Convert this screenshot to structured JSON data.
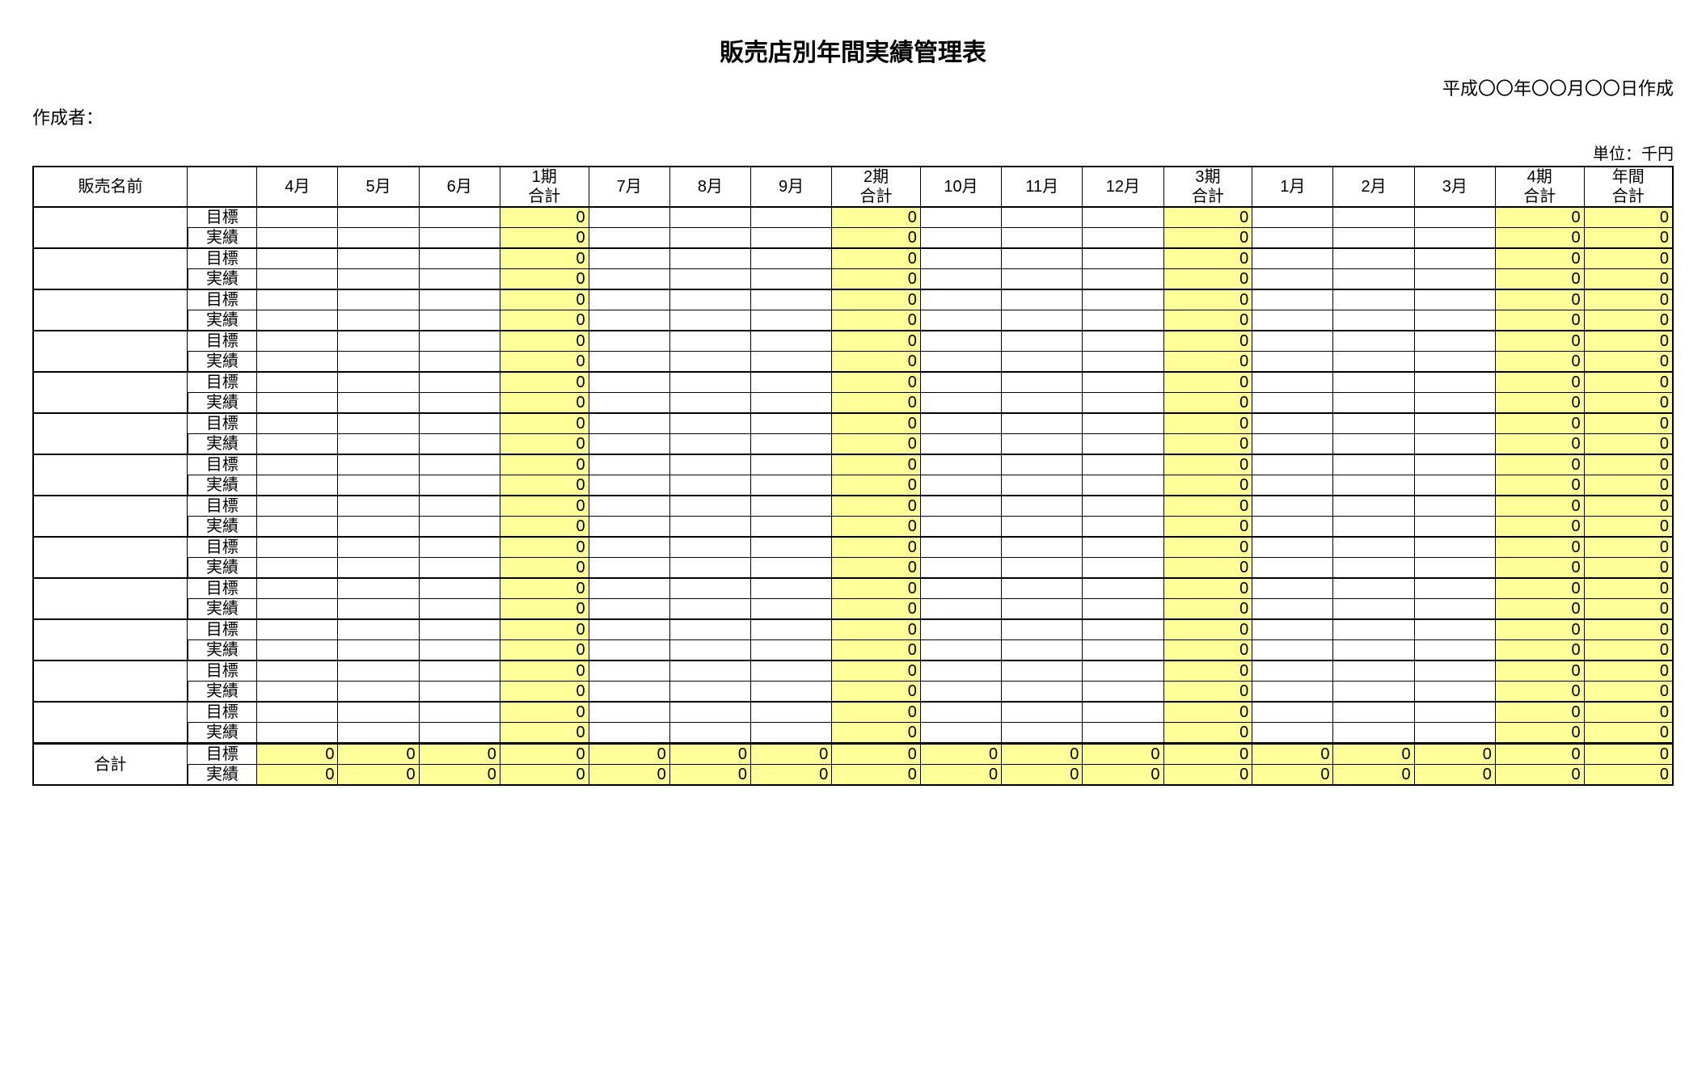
{
  "title": "販売店別年間実績管理表",
  "date_created": "平成〇〇年〇〇月〇〇日作成",
  "creator_label": "作成者：",
  "unit_label": "単位：千円",
  "colors": {
    "highlight_bg": "#ffff99",
    "border": "#000000",
    "background": "#ffffff",
    "text": "#000000"
  },
  "headers": {
    "name": "販売名前",
    "type_blank": "",
    "months_q1": [
      "4月",
      "5月",
      "6月"
    ],
    "q1_sum_line1": "1期",
    "q1_sum_line2": "合計",
    "months_q2": [
      "7月",
      "8月",
      "9月"
    ],
    "q2_sum_line1": "2期",
    "q2_sum_line2": "合計",
    "months_q3": [
      "10月",
      "11月",
      "12月"
    ],
    "q3_sum_line1": "3期",
    "q3_sum_line2": "合計",
    "months_q4": [
      "1月",
      "2月",
      "3月"
    ],
    "q4_sum_line1": "4期",
    "q4_sum_line2": "合計",
    "year_sum_line1": "年間",
    "year_sum_line2": "合計"
  },
  "row_type_labels": {
    "target": "目標",
    "actual": "実績"
  },
  "store_rows": [
    {
      "name": "",
      "target": {
        "m": [
          "",
          "",
          "",
          "",
          "",
          "",
          "",
          "",
          "",
          "",
          "",
          ""
        ],
        "q": [
          "0",
          "0",
          "0",
          "0"
        ],
        "y": "0"
      },
      "actual": {
        "m": [
          "",
          "",
          "",
          "",
          "",
          "",
          "",
          "",
          "",
          "",
          "",
          ""
        ],
        "q": [
          "0",
          "0",
          "0",
          "0"
        ],
        "y": "0"
      }
    },
    {
      "name": "",
      "target": {
        "m": [
          "",
          "",
          "",
          "",
          "",
          "",
          "",
          "",
          "",
          "",
          "",
          ""
        ],
        "q": [
          "0",
          "0",
          "0",
          "0"
        ],
        "y": "0"
      },
      "actual": {
        "m": [
          "",
          "",
          "",
          "",
          "",
          "",
          "",
          "",
          "",
          "",
          "",
          ""
        ],
        "q": [
          "0",
          "0",
          "0",
          "0"
        ],
        "y": "0"
      }
    },
    {
      "name": "",
      "target": {
        "m": [
          "",
          "",
          "",
          "",
          "",
          "",
          "",
          "",
          "",
          "",
          "",
          ""
        ],
        "q": [
          "0",
          "0",
          "0",
          "0"
        ],
        "y": "0"
      },
      "actual": {
        "m": [
          "",
          "",
          "",
          "",
          "",
          "",
          "",
          "",
          "",
          "",
          "",
          ""
        ],
        "q": [
          "0",
          "0",
          "0",
          "0"
        ],
        "y": "0"
      }
    },
    {
      "name": "",
      "target": {
        "m": [
          "",
          "",
          "",
          "",
          "",
          "",
          "",
          "",
          "",
          "",
          "",
          ""
        ],
        "q": [
          "0",
          "0",
          "0",
          "0"
        ],
        "y": "0"
      },
      "actual": {
        "m": [
          "",
          "",
          "",
          "",
          "",
          "",
          "",
          "",
          "",
          "",
          "",
          ""
        ],
        "q": [
          "0",
          "0",
          "0",
          "0"
        ],
        "y": "0"
      }
    },
    {
      "name": "",
      "target": {
        "m": [
          "",
          "",
          "",
          "",
          "",
          "",
          "",
          "",
          "",
          "",
          "",
          ""
        ],
        "q": [
          "0",
          "0",
          "0",
          "0"
        ],
        "y": "0"
      },
      "actual": {
        "m": [
          "",
          "",
          "",
          "",
          "",
          "",
          "",
          "",
          "",
          "",
          "",
          ""
        ],
        "q": [
          "0",
          "0",
          "0",
          "0"
        ],
        "y": "0"
      }
    },
    {
      "name": "",
      "target": {
        "m": [
          "",
          "",
          "",
          "",
          "",
          "",
          "",
          "",
          "",
          "",
          "",
          ""
        ],
        "q": [
          "0",
          "0",
          "0",
          "0"
        ],
        "y": "0"
      },
      "actual": {
        "m": [
          "",
          "",
          "",
          "",
          "",
          "",
          "",
          "",
          "",
          "",
          "",
          ""
        ],
        "q": [
          "0",
          "0",
          "0",
          "0"
        ],
        "y": "0"
      }
    },
    {
      "name": "",
      "target": {
        "m": [
          "",
          "",
          "",
          "",
          "",
          "",
          "",
          "",
          "",
          "",
          "",
          ""
        ],
        "q": [
          "0",
          "0",
          "0",
          "0"
        ],
        "y": "0"
      },
      "actual": {
        "m": [
          "",
          "",
          "",
          "",
          "",
          "",
          "",
          "",
          "",
          "",
          "",
          ""
        ],
        "q": [
          "0",
          "0",
          "0",
          "0"
        ],
        "y": "0"
      }
    },
    {
      "name": "",
      "target": {
        "m": [
          "",
          "",
          "",
          "",
          "",
          "",
          "",
          "",
          "",
          "",
          "",
          ""
        ],
        "q": [
          "0",
          "0",
          "0",
          "0"
        ],
        "y": "0"
      },
      "actual": {
        "m": [
          "",
          "",
          "",
          "",
          "",
          "",
          "",
          "",
          "",
          "",
          "",
          ""
        ],
        "q": [
          "0",
          "0",
          "0",
          "0"
        ],
        "y": "0"
      }
    },
    {
      "name": "",
      "target": {
        "m": [
          "",
          "",
          "",
          "",
          "",
          "",
          "",
          "",
          "",
          "",
          "",
          ""
        ],
        "q": [
          "0",
          "0",
          "0",
          "0"
        ],
        "y": "0"
      },
      "actual": {
        "m": [
          "",
          "",
          "",
          "",
          "",
          "",
          "",
          "",
          "",
          "",
          "",
          ""
        ],
        "q": [
          "0",
          "0",
          "0",
          "0"
        ],
        "y": "0"
      }
    },
    {
      "name": "",
      "target": {
        "m": [
          "",
          "",
          "",
          "",
          "",
          "",
          "",
          "",
          "",
          "",
          "",
          ""
        ],
        "q": [
          "0",
          "0",
          "0",
          "0"
        ],
        "y": "0"
      },
      "actual": {
        "m": [
          "",
          "",
          "",
          "",
          "",
          "",
          "",
          "",
          "",
          "",
          "",
          ""
        ],
        "q": [
          "0",
          "0",
          "0",
          "0"
        ],
        "y": "0"
      }
    },
    {
      "name": "",
      "target": {
        "m": [
          "",
          "",
          "",
          "",
          "",
          "",
          "",
          "",
          "",
          "",
          "",
          ""
        ],
        "q": [
          "0",
          "0",
          "0",
          "0"
        ],
        "y": "0"
      },
      "actual": {
        "m": [
          "",
          "",
          "",
          "",
          "",
          "",
          "",
          "",
          "",
          "",
          "",
          ""
        ],
        "q": [
          "0",
          "0",
          "0",
          "0"
        ],
        "y": "0"
      }
    },
    {
      "name": "",
      "target": {
        "m": [
          "",
          "",
          "",
          "",
          "",
          "",
          "",
          "",
          "",
          "",
          "",
          ""
        ],
        "q": [
          "0",
          "0",
          "0",
          "0"
        ],
        "y": "0"
      },
      "actual": {
        "m": [
          "",
          "",
          "",
          "",
          "",
          "",
          "",
          "",
          "",
          "",
          "",
          ""
        ],
        "q": [
          "0",
          "0",
          "0",
          "0"
        ],
        "y": "0"
      }
    },
    {
      "name": "",
      "target": {
        "m": [
          "",
          "",
          "",
          "",
          "",
          "",
          "",
          "",
          "",
          "",
          "",
          ""
        ],
        "q": [
          "0",
          "0",
          "0",
          "0"
        ],
        "y": "0"
      },
      "actual": {
        "m": [
          "",
          "",
          "",
          "",
          "",
          "",
          "",
          "",
          "",
          "",
          "",
          ""
        ],
        "q": [
          "0",
          "0",
          "0",
          "0"
        ],
        "y": "0"
      }
    }
  ],
  "total_row": {
    "label": "合計",
    "target": {
      "m": [
        "0",
        "0",
        "0",
        "0",
        "0",
        "0",
        "0",
        "0",
        "0",
        "0",
        "0",
        "0"
      ],
      "q": [
        "0",
        "0",
        "0",
        "0"
      ],
      "y": "0"
    },
    "actual": {
      "m": [
        "0",
        "0",
        "0",
        "0",
        "0",
        "0",
        "0",
        "0",
        "0",
        "0",
        "0",
        "0"
      ],
      "q": [
        "0",
        "0",
        "0",
        "0"
      ],
      "y": "0"
    }
  }
}
